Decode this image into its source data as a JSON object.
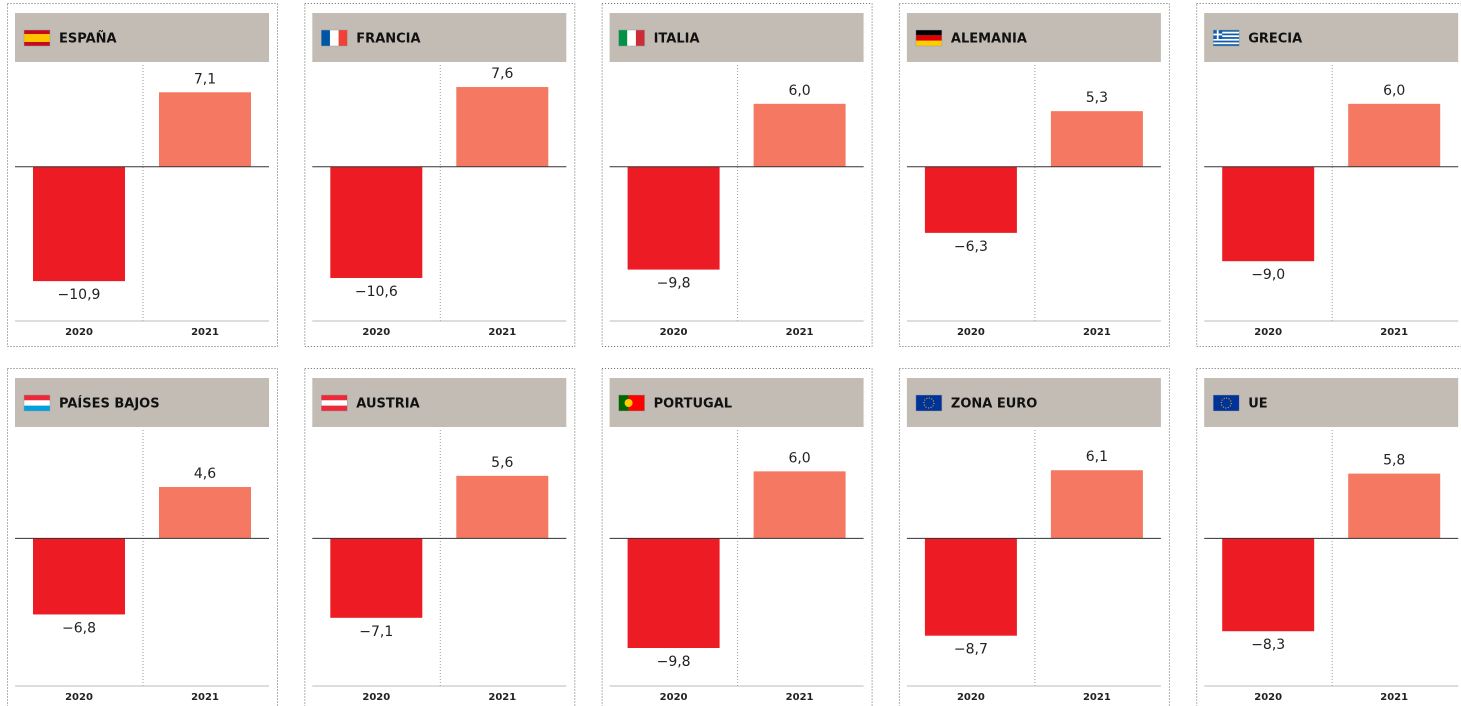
{
  "chart_data": [
    {
      "type": "bar",
      "title": "ESPAÑA",
      "categories": [
        "2020",
        "2021"
      ],
      "values": [
        -10.9,
        7.1
      ],
      "value_labels": [
        "−10,9",
        "7,1"
      ],
      "colors": [
        "#ed1c24",
        "#f47862"
      ],
      "ylim": [
        -14.7,
        9.7
      ]
    },
    {
      "type": "bar",
      "title": "FRANCIA",
      "categories": [
        "2020",
        "2021"
      ],
      "values": [
        -10.6,
        7.6
      ],
      "value_labels": [
        "−10,6",
        "7,6"
      ],
      "colors": [
        "#ed1c24",
        "#f47862"
      ],
      "ylim": [
        -14.7,
        9.7
      ]
    },
    {
      "type": "bar",
      "title": "ITALIA",
      "categories": [
        "2020",
        "2021"
      ],
      "values": [
        -9.8,
        6.0
      ],
      "value_labels": [
        "−9,8",
        "6,0"
      ],
      "colors": [
        "#ed1c24",
        "#f47862"
      ],
      "ylim": [
        -14.7,
        9.7
      ]
    },
    {
      "type": "bar",
      "title": "ALEMANIA",
      "categories": [
        "2020",
        "2021"
      ],
      "values": [
        -6.3,
        5.3
      ],
      "value_labels": [
        "−6,3",
        "5,3"
      ],
      "colors": [
        "#ed1c24",
        "#f47862"
      ],
      "ylim": [
        -14.7,
        9.7
      ]
    },
    {
      "type": "bar",
      "title": "GRECIA",
      "categories": [
        "2020",
        "2021"
      ],
      "values": [
        -9.0,
        6.0
      ],
      "value_labels": [
        "−9,0",
        "6,0"
      ],
      "colors": [
        "#ed1c24",
        "#f47862"
      ],
      "ylim": [
        -14.7,
        9.7
      ]
    },
    {
      "type": "bar",
      "title": "PAÍSES BAJOS",
      "categories": [
        "2020",
        "2021"
      ],
      "values": [
        -6.8,
        4.6
      ],
      "value_labels": [
        "−6,8",
        "4,6"
      ],
      "colors": [
        "#ed1c24",
        "#f47862"
      ],
      "ylim": [
        -13.2,
        9.7
      ]
    },
    {
      "type": "bar",
      "title": "AUSTRIA",
      "categories": [
        "2020",
        "2021"
      ],
      "values": [
        -7.1,
        5.6
      ],
      "value_labels": [
        "−7,1",
        "5,6"
      ],
      "colors": [
        "#ed1c24",
        "#f47862"
      ],
      "ylim": [
        -13.2,
        9.7
      ]
    },
    {
      "type": "bar",
      "title": "PORTUGAL",
      "categories": [
        "2020",
        "2021"
      ],
      "values": [
        -9.8,
        6.0
      ],
      "value_labels": [
        "−9,8",
        "6,0"
      ],
      "colors": [
        "#ed1c24",
        "#f47862"
      ],
      "ylim": [
        -13.2,
        9.7
      ]
    },
    {
      "type": "bar",
      "title": "ZONA EURO",
      "categories": [
        "2020",
        "2021"
      ],
      "values": [
        -8.7,
        6.1
      ],
      "value_labels": [
        "−8,7",
        "6,1"
      ],
      "colors": [
        "#ed1c24",
        "#f47862"
      ],
      "ylim": [
        -13.2,
        9.7
      ]
    },
    {
      "type": "bar",
      "title": "UE",
      "categories": [
        "2020",
        "2021"
      ],
      "values": [
        -8.3,
        5.8
      ],
      "value_labels": [
        "−8,3",
        "5,8"
      ],
      "colors": [
        "#ed1c24",
        "#f47862"
      ],
      "ylim": [
        -13.2,
        9.7
      ]
    }
  ]
}
